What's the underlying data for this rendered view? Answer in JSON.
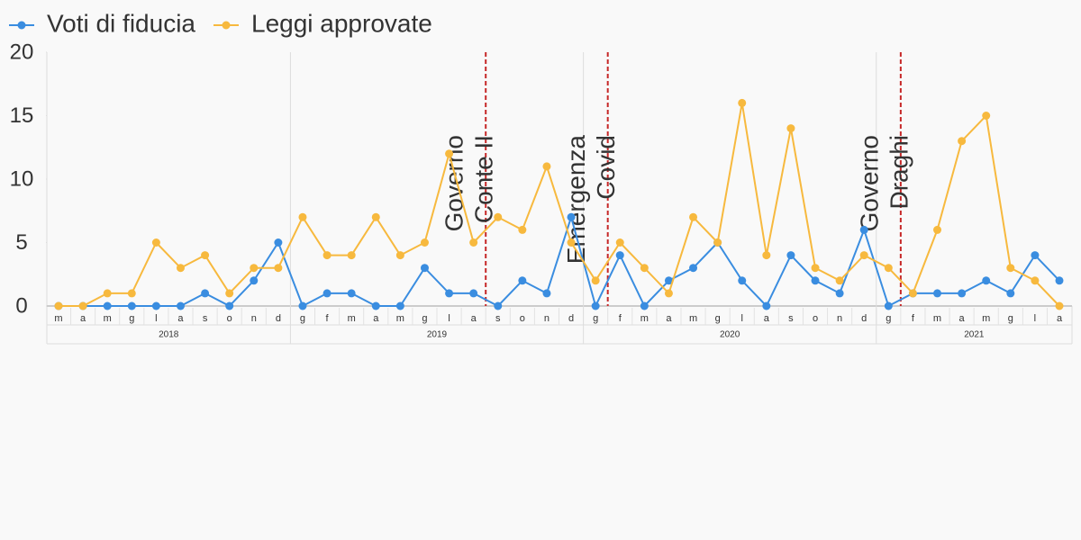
{
  "chart_data": {
    "type": "line",
    "categories": [
      "m",
      "a",
      "m",
      "g",
      "l",
      "a",
      "s",
      "o",
      "n",
      "d",
      "g",
      "f",
      "m",
      "a",
      "m",
      "g",
      "l",
      "a",
      "s",
      "o",
      "n",
      "d",
      "g",
      "f",
      "m",
      "a",
      "m",
      "g",
      "l",
      "a",
      "s",
      "o",
      "n",
      "d",
      "g",
      "f",
      "m",
      "a",
      "m",
      "g",
      "l",
      "a"
    ],
    "years": [
      "2018",
      "2019",
      "2020",
      "2021"
    ],
    "series": [
      {
        "name": "Voti di fiducia",
        "color": "#3a8de0",
        "values": [
          0,
          0,
          0,
          0,
          0,
          0,
          1,
          0,
          2,
          5,
          0,
          1,
          1,
          0,
          0,
          3,
          1,
          1,
          0,
          2,
          1,
          7,
          0,
          4,
          0,
          2,
          3,
          5,
          2,
          0,
          4,
          2,
          1,
          6,
          0,
          1,
          1,
          1,
          2,
          1,
          4,
          2
        ]
      },
      {
        "name": "Leggi approvate",
        "color": "#f7b93e",
        "values": [
          0,
          0,
          1,
          1,
          5,
          3,
          4,
          1,
          3,
          3,
          7,
          4,
          4,
          7,
          4,
          5,
          12,
          5,
          7,
          6,
          11,
          5,
          2,
          5,
          3,
          1,
          7,
          5,
          16,
          4,
          14,
          3,
          2,
          4,
          3,
          1,
          6,
          13,
          15,
          3,
          2,
          0
        ]
      }
    ],
    "annotations": [
      {
        "lines": [
          "Governo",
          "Conte II"
        ],
        "color": "#c62828"
      },
      {
        "lines": [
          "Emergenza",
          "Covid"
        ],
        "color": "#c62828"
      },
      {
        "lines": [
          "Governo",
          "Draghi"
        ],
        "color": "#c62828"
      }
    ],
    "ylim": [
      0,
      20
    ],
    "yticks": [
      0,
      5,
      10,
      15,
      20
    ]
  }
}
